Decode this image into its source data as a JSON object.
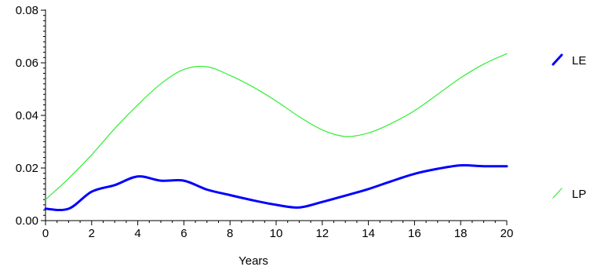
{
  "chart_data": {
    "type": "line",
    "title": "",
    "xlabel": "Years",
    "ylabel": "",
    "xlim": [
      0,
      20
    ],
    "ylim": [
      0,
      0.08
    ],
    "x_ticks": [
      "0",
      "2",
      "4",
      "6",
      "8",
      "10",
      "12",
      "14",
      "16",
      "18",
      "20"
    ],
    "y_ticks": [
      "0.00",
      "0.02",
      "0.04",
      "0.06",
      "0.08"
    ],
    "grid": false,
    "legend_position": "right",
    "series": [
      {
        "name": "LE",
        "color": "#0000ff",
        "x": [
          0,
          1,
          2,
          3,
          4,
          5,
          6,
          7,
          8,
          9,
          10,
          11,
          12,
          13,
          14,
          15,
          16,
          17,
          18,
          19,
          20
        ],
        "y": [
          0.0045,
          0.0045,
          0.011,
          0.0135,
          0.0168,
          0.0152,
          0.0152,
          0.0118,
          0.0097,
          0.0077,
          0.006,
          0.005,
          0.0071,
          0.0095,
          0.012,
          0.015,
          0.0178,
          0.0197,
          0.021,
          0.0207,
          0.0207
        ]
      },
      {
        "name": "LP",
        "color": "#33ee33",
        "x": [
          0,
          1,
          2,
          3,
          4,
          5,
          6,
          7,
          8,
          9,
          10,
          11,
          12,
          13,
          14,
          15,
          16,
          17,
          18,
          19,
          20
        ],
        "y": [
          0.008,
          0.016,
          0.025,
          0.035,
          0.044,
          0.052,
          0.0575,
          0.0585,
          0.0552,
          0.0508,
          0.0455,
          0.0395,
          0.0345,
          0.032,
          0.0333,
          0.037,
          0.0418,
          0.048,
          0.0543,
          0.0595,
          0.0635
        ]
      }
    ]
  }
}
